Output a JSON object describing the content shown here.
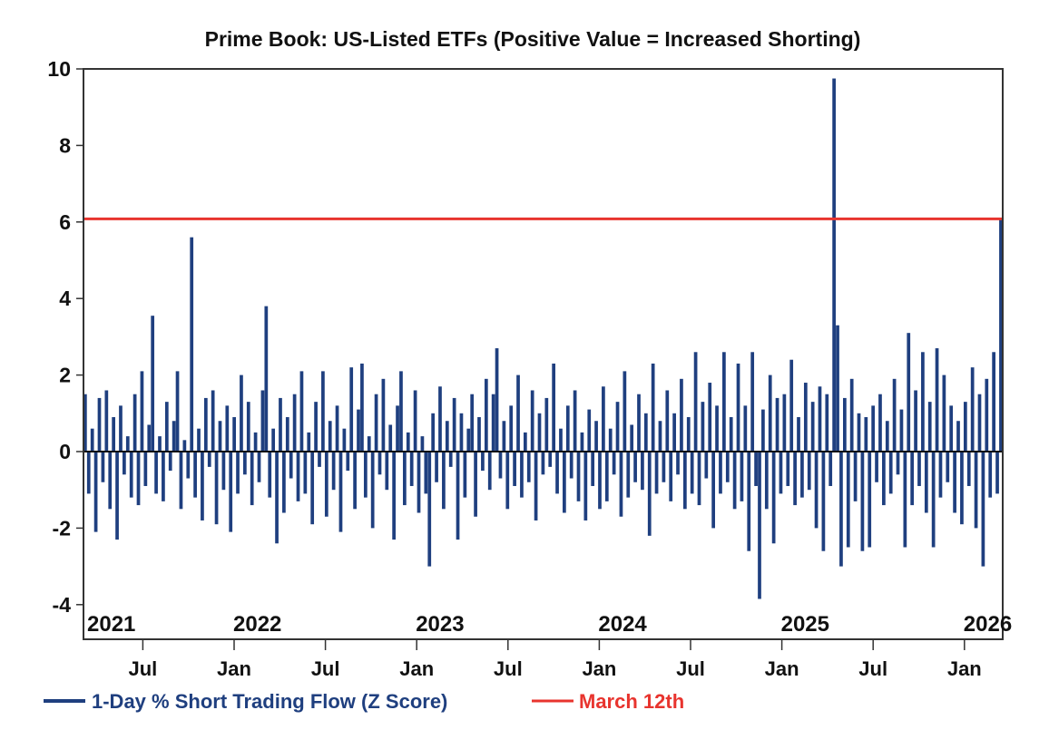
{
  "chart_data": {
    "type": "bar",
    "title": "Prime Book: US-Listed ETFs (Positive Value = Increased Shorting)",
    "xlabel": "",
    "ylabel": "",
    "ylim": [
      -4,
      10
    ],
    "yticks": [
      "10",
      "8",
      "6",
      "4",
      "2",
      "0",
      "-2",
      "-4"
    ],
    "ytick_values": [
      10,
      8,
      6,
      4,
      2,
      0,
      -2,
      -4
    ],
    "x_range": [
      "2021-03",
      "2026-03-12"
    ],
    "year_labels": [
      {
        "label": "2021",
        "t": 2021.17
      },
      {
        "label": "2022",
        "t": 2022.0
      },
      {
        "label": "2023",
        "t": 2023.0
      },
      {
        "label": "2024",
        "t": 2024.0
      },
      {
        "label": "2025",
        "t": 2025.0
      },
      {
        "label": "2026",
        "t": 2026.0
      }
    ],
    "month_ticks": [
      {
        "label": "Jul",
        "t": 2021.5
      },
      {
        "label": "Jan",
        "t": 2022.0
      },
      {
        "label": "Jul",
        "t": 2022.5
      },
      {
        "label": "Jan",
        "t": 2023.0
      },
      {
        "label": "Jul",
        "t": 2023.5
      },
      {
        "label": "Jan",
        "t": 2024.0
      },
      {
        "label": "Jul",
        "t": 2024.5
      },
      {
        "label": "Jan",
        "t": 2025.0
      },
      {
        "label": "Jul",
        "t": 2025.5
      },
      {
        "label": "Jan",
        "t": 2026.0
      }
    ],
    "grid": false,
    "legend_position": "bottom",
    "series": [
      {
        "name": "1-Day % Short Trading Flow (Z Score)",
        "color": "#1f3f7f",
        "x_start": 2021.17,
        "x_step": 0.0192,
        "values": [
          1.5,
          -1.1,
          0.6,
          -2.1,
          1.4,
          -0.8,
          1.6,
          -1.5,
          0.9,
          -2.3,
          1.2,
          -0.6,
          0.4,
          -1.2,
          1.5,
          -1.4,
          2.1,
          -0.9,
          0.7,
          3.55,
          -1.1,
          0.4,
          -1.3,
          1.3,
          -0.5,
          0.8,
          2.1,
          -1.5,
          0.3,
          -0.7,
          5.6,
          -1.2,
          0.6,
          -1.8,
          1.4,
          -0.4,
          1.6,
          -1.9,
          0.8,
          -1.0,
          1.2,
          -2.1,
          0.9,
          -1.1,
          2.0,
          -0.6,
          1.3,
          -1.4,
          0.5,
          -0.8,
          1.6,
          3.8,
          -1.2,
          0.6,
          -2.4,
          1.4,
          -1.6,
          0.9,
          -0.7,
          1.5,
          -1.3,
          2.1,
          -1.1,
          0.5,
          -1.9,
          1.3,
          -0.4,
          2.1,
          -1.7,
          0.8,
          -1.0,
          1.2,
          -2.1,
          0.6,
          -0.5,
          2.2,
          -1.5,
          1.1,
          2.3,
          -1.2,
          0.4,
          -2.0,
          1.5,
          -0.6,
          1.9,
          -1.0,
          0.7,
          -2.3,
          1.2,
          2.1,
          -1.4,
          0.5,
          -0.9,
          1.6,
          -1.6,
          0.4,
          -1.1,
          -3.0,
          1.0,
          -0.8,
          1.7,
          -1.5,
          0.8,
          -0.4,
          1.4,
          -2.3,
          1.0,
          -1.2,
          0.6,
          1.5,
          -1.7,
          0.9,
          -0.5,
          1.9,
          -1.0,
          1.5,
          2.7,
          -0.7,
          0.8,
          -1.5,
          1.2,
          -0.9,
          2.0,
          -1.2,
          0.5,
          -0.8,
          1.6,
          -1.8,
          1.0,
          -0.6,
          1.4,
          -0.4,
          2.3,
          -1.1,
          0.6,
          -1.6,
          1.2,
          -0.7,
          1.6,
          -1.3,
          0.5,
          -1.8,
          1.1,
          -0.9,
          0.8,
          -1.5,
          1.7,
          -1.3,
          0.6,
          -0.6,
          1.3,
          -1.7,
          2.1,
          -1.2,
          0.7,
          -0.8,
          1.5,
          -1.0,
          1.0,
          -2.2,
          2.3,
          -1.1,
          0.8,
          -0.8,
          1.6,
          -1.3,
          1.0,
          -0.6,
          1.9,
          -1.5,
          0.9,
          -1.1,
          2.6,
          -1.4,
          1.3,
          -0.7,
          1.8,
          -2.0,
          1.2,
          -1.1,
          2.6,
          -0.8,
          0.9,
          -1.5,
          2.3,
          -1.3,
          1.2,
          -2.6,
          2.6,
          -0.9,
          -3.85,
          1.1,
          -1.5,
          2.0,
          -2.4,
          1.4,
          -1.1,
          1.5,
          -0.9,
          2.4,
          -1.4,
          0.9,
          -1.2,
          1.8,
          -1.0,
          1.3,
          -2.0,
          1.7,
          -2.6,
          1.5,
          -0.9,
          9.75,
          3.3,
          -3.0,
          1.4,
          -2.5,
          1.9,
          -1.3,
          1.0,
          -2.6,
          0.9,
          -2.5,
          1.2,
          -0.8,
          1.5,
          -1.4,
          0.8,
          -1.1,
          1.9,
          -0.6,
          1.1,
          -2.5,
          3.1,
          -1.4,
          1.6,
          -0.9,
          2.6,
          -1.6,
          1.3,
          -2.5,
          2.7,
          -1.2,
          2.0,
          -0.8,
          1.2,
          -1.6,
          0.8,
          -1.9,
          1.3,
          -0.9,
          2.2,
          -2.0,
          1.5,
          -3.0,
          1.9,
          -1.2,
          2.6,
          -1.1,
          6.08
        ]
      },
      {
        "name": "March 12th",
        "color": "#e8342e",
        "type": "hline",
        "value": 6.08
      }
    ]
  },
  "legend": {
    "series1_label": "1-Day % Short Trading Flow (Z Score)",
    "series2_label": "March 12th"
  }
}
